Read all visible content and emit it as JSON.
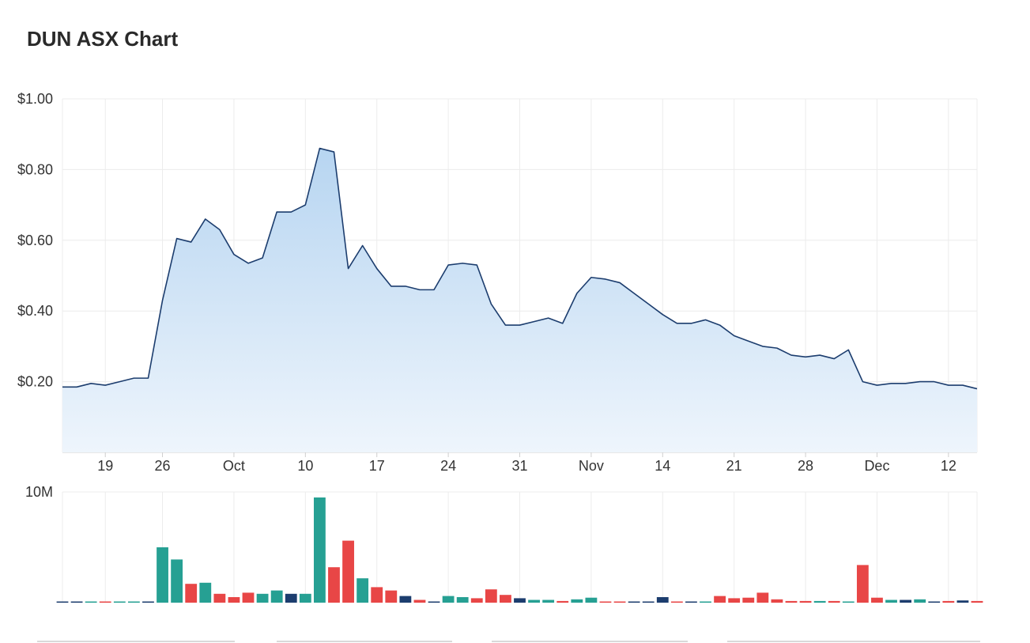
{
  "title": "DUN ASX Chart",
  "chart_data": [
    {
      "type": "area",
      "title": "DUN ASX Chart",
      "xlabel": "",
      "ylabel": "",
      "ylim": [
        0,
        1.0
      ],
      "y_ticks": [
        "$1.00",
        "$0.80",
        "$0.60",
        "$0.40",
        "$0.20"
      ],
      "y_tick_values": [
        1.0,
        0.8,
        0.6,
        0.4,
        0.2
      ],
      "x_tick_labels": [
        "19",
        "26",
        "Oct",
        "10",
        "17",
        "24",
        "31",
        "Nov",
        "14",
        "21",
        "28",
        "Dec",
        "12"
      ],
      "x_tick_index": [
        3,
        7,
        12,
        17,
        22,
        27,
        32,
        37,
        42,
        47,
        52,
        57,
        62
      ],
      "grid": true,
      "line_color": "#1c3d6e",
      "fill_color": "#b9d7f2",
      "series": [
        {
          "values": [
            0.185,
            0.185,
            0.195,
            0.19,
            0.2,
            0.21,
            0.21,
            0.43,
            0.605,
            0.595,
            0.66,
            0.63,
            0.56,
            0.535,
            0.55,
            0.68,
            0.68,
            0.7,
            0.86,
            0.85,
            0.52,
            0.585,
            0.52,
            0.47,
            0.47,
            0.46,
            0.46,
            0.53,
            0.535,
            0.53,
            0.42,
            0.36,
            0.36,
            0.37,
            0.38,
            0.365,
            0.45,
            0.495,
            0.49,
            0.48,
            0.45,
            0.42,
            0.39,
            0.365,
            0.365,
            0.375,
            0.36,
            0.33,
            0.315,
            0.3,
            0.295,
            0.275,
            0.27,
            0.275,
            0.265,
            0.29,
            0.2,
            0.19,
            0.195,
            0.195,
            0.2,
            0.2,
            0.19,
            0.19,
            0.18
          ]
        }
      ]
    },
    {
      "type": "bar",
      "title": "",
      "ylim": [
        0,
        10
      ],
      "y_ticks": [
        "10M"
      ],
      "y_tick_values": [
        10
      ],
      "grid": true,
      "colors": {
        "up": "#26a093",
        "down": "#e84646",
        "flat": "#1c3d6e"
      },
      "series": [
        {
          "values": [
            0.1,
            0.1,
            0.1,
            0.05,
            0.1,
            0.1,
            0.1,
            5.0,
            3.9,
            1.7,
            1.8,
            0.8,
            0.5,
            0.9,
            0.8,
            1.1,
            0.8,
            0.8,
            9.5,
            3.2,
            5.6,
            2.2,
            1.4,
            1.1,
            0.6,
            0.25,
            0.1,
            0.6,
            0.5,
            0.4,
            1.2,
            0.7,
            0.4,
            0.25,
            0.25,
            0.15,
            0.3,
            0.45,
            0.1,
            0.05,
            0.05,
            0.1,
            0.5,
            0.1,
            0.1,
            0.1,
            0.6,
            0.4,
            0.45,
            0.9,
            0.3,
            0.15,
            0.15,
            0.15,
            0.15,
            0.05,
            3.4,
            0.45,
            0.25,
            0.25,
            0.3,
            0.1,
            0.15,
            0.2,
            0.15
          ],
          "direction": [
            "flat",
            "flat",
            "up",
            "down",
            "up",
            "up",
            "flat",
            "up",
            "up",
            "down",
            "up",
            "down",
            "down",
            "down",
            "up",
            "up",
            "flat",
            "up",
            "up",
            "down",
            "down",
            "up",
            "down",
            "down",
            "flat",
            "down",
            "flat",
            "up",
            "up",
            "down",
            "down",
            "down",
            "flat",
            "up",
            "up",
            "down",
            "up",
            "up",
            "down",
            "down",
            "flat",
            "flat",
            "flat",
            "down",
            "flat",
            "up",
            "down",
            "down",
            "down",
            "down",
            "down",
            "down",
            "down",
            "up",
            "down",
            "up",
            "down",
            "down",
            "up",
            "flat",
            "up",
            "flat",
            "down",
            "flat",
            "down"
          ]
        }
      ]
    }
  ]
}
